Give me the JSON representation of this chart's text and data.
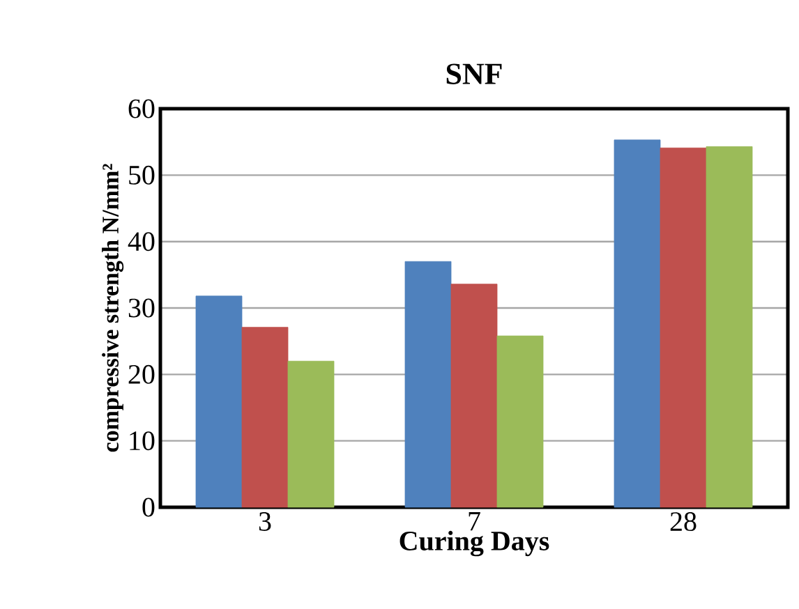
{
  "chart_data": {
    "type": "bar",
    "title": "SNF",
    "xlabel": "Curing Days",
    "ylabel": "compressive strength N/mm²",
    "categories": [
      "3",
      "7",
      "28"
    ],
    "series": [
      {
        "color": "#4f81bd",
        "values": [
          31.8,
          37.0,
          55.3
        ]
      },
      {
        "color": "#c0504d",
        "values": [
          27.1,
          33.6,
          54.1
        ]
      },
      {
        "color": "#9bbb59",
        "values": [
          22.0,
          25.8,
          54.3
        ]
      }
    ],
    "ylim": [
      0,
      60
    ],
    "yticks": [
      0,
      10,
      20,
      30,
      40,
      50,
      60
    ],
    "grid": "y"
  }
}
